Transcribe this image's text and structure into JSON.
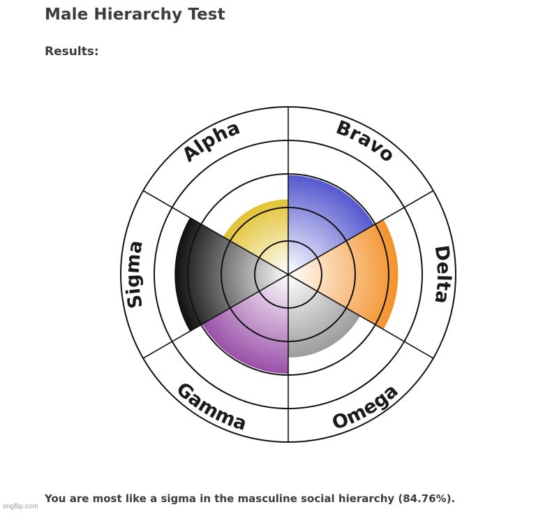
{
  "page": {
    "title": "Male Hierarchy Test",
    "results_label": "Results:",
    "result_text": "You are most like a sigma in the masculine social hierarchy (84.76%).",
    "watermark": "imgflip.com"
  },
  "chart_data": {
    "type": "polar-area",
    "title": "",
    "max": 100,
    "ring_levels": [
      25,
      50,
      75,
      100
    ],
    "segments": [
      {
        "name": "Alpha",
        "value": 56,
        "color": "#e3c233"
      },
      {
        "name": "Bravo",
        "value": 74,
        "color": "#5558cf"
      },
      {
        "name": "Delta",
        "value": 82,
        "color": "#f4922a"
      },
      {
        "name": "Omega",
        "value": 62,
        "color": "#9c9c9c"
      },
      {
        "name": "Gamma",
        "value": 74,
        "color": "#9a50a8"
      },
      {
        "name": "Sigma",
        "value": 84.76,
        "color": "#0f0f0f"
      }
    ]
  }
}
